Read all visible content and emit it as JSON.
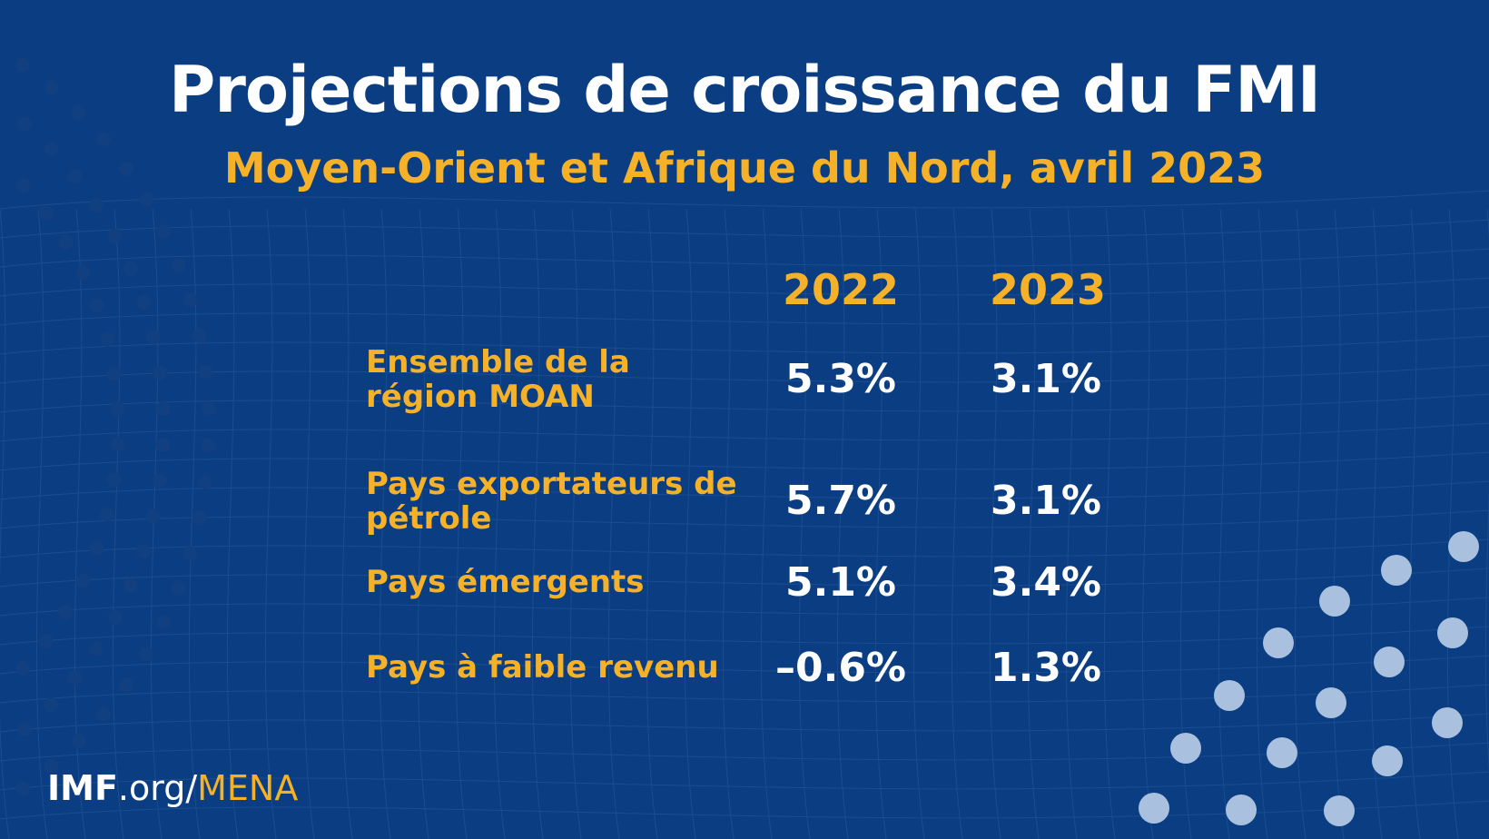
{
  "title": "Projections de croissance du FMI",
  "subtitle": "Moyen-Orient et Afrique du Nord, avril 2023",
  "footer": {
    "imf": "IMF",
    "org": ".org/",
    "mena": "MENA"
  },
  "colors": {
    "background": "#0b3d82",
    "accent": "#f5b127",
    "text": "#ffffff",
    "dots": "#a9c1de"
  },
  "chart_data": {
    "type": "table",
    "columns": [
      "2022",
      "2023"
    ],
    "rows": [
      {
        "label": "Ensemble de la région MOAN",
        "values": [
          "5.3%",
          "3.1%"
        ]
      },
      {
        "label": "Pays exportateurs de pétrole",
        "values": [
          "5.7%",
          "3.1%"
        ]
      },
      {
        "label": "Pays émergents",
        "values": [
          "5.1%",
          "3.4%"
        ]
      },
      {
        "label": "Pays à faible revenu",
        "values": [
          "–0.6%",
          "1.3%"
        ]
      }
    ]
  }
}
